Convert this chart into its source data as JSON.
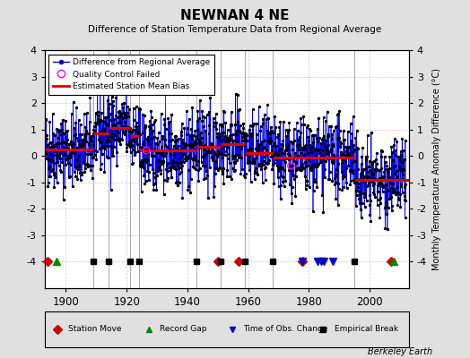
{
  "title": "NEWNAN 4 NE",
  "subtitle": "Difference of Station Temperature Data from Regional Average",
  "ylabel": "Monthly Temperature Anomaly Difference (°C)",
  "xlabel_years": [
    1900,
    1920,
    1940,
    1960,
    1980,
    2000
  ],
  "ylim": [
    -5,
    4
  ],
  "yticks": [
    -4,
    -3,
    -2,
    -1,
    0,
    1,
    2,
    3,
    4
  ],
  "xlim": [
    1893,
    2013
  ],
  "background_color": "#e0e0e0",
  "plot_bg_color": "#ffffff",
  "line_color": "#0000ff",
  "dot_color": "#000000",
  "qc_color": "#ff00ff",
  "bias_color": "#dd0000",
  "grid_color": "#bbbbbb",
  "station_move_color": "#cc0000",
  "record_gap_color": "#008800",
  "obs_change_color": "#0000cc",
  "empirical_break_color": "#000000",
  "watermark": "Berkeley Earth",
  "station_moves": [
    1894,
    1950,
    1957,
    1978,
    2007
  ],
  "record_gaps": [
    1897,
    2008
  ],
  "obs_changes": [
    1978,
    1983,
    1984,
    1985,
    1988
  ],
  "empirical_breaks": [
    1909,
    1914,
    1921,
    1924,
    1943,
    1951,
    1959,
    1968,
    1995
  ],
  "bias_segments": [
    {
      "start": 1893,
      "end": 1909,
      "value": 0.25
    },
    {
      "start": 1909,
      "end": 1914,
      "value": 0.85
    },
    {
      "start": 1914,
      "end": 1921,
      "value": 1.05
    },
    {
      "start": 1921,
      "end": 1924,
      "value": 0.75
    },
    {
      "start": 1924,
      "end": 1943,
      "value": 0.2
    },
    {
      "start": 1943,
      "end": 1951,
      "value": 0.35
    },
    {
      "start": 1951,
      "end": 1959,
      "value": 0.45
    },
    {
      "start": 1959,
      "end": 1968,
      "value": 0.1
    },
    {
      "start": 1968,
      "end": 1995,
      "value": -0.05
    },
    {
      "start": 1995,
      "end": 2013,
      "value": -0.9
    }
  ],
  "vert_lines": [
    1909,
    1914,
    1921,
    1924,
    1943,
    1951,
    1959,
    1968,
    1995
  ],
  "seed": 42
}
